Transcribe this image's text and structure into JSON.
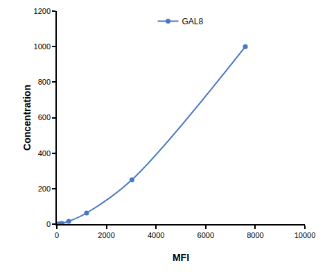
{
  "chart_data": {
    "type": "line",
    "x_label": "MFI",
    "y_label": "Concentration",
    "series": [
      {
        "name": "GAL8",
        "color": "#4a76c4",
        "marker": "circle",
        "line_style": "smooth",
        "x": [
          50,
          100,
          200,
          480,
          1200,
          3030,
          7600
        ],
        "values": [
          0.24,
          0.98,
          3.9,
          15.6,
          62.5,
          250,
          1000
        ]
      }
    ],
    "xlim": [
      0,
      10000
    ],
    "xticks": [
      0,
      2000,
      4000,
      6000,
      8000,
      10000
    ],
    "ylim": [
      0,
      1200
    ],
    "yticks": [
      0,
      200,
      400,
      600,
      800,
      1000,
      1200
    ],
    "grid": false,
    "legend": "top"
  }
}
